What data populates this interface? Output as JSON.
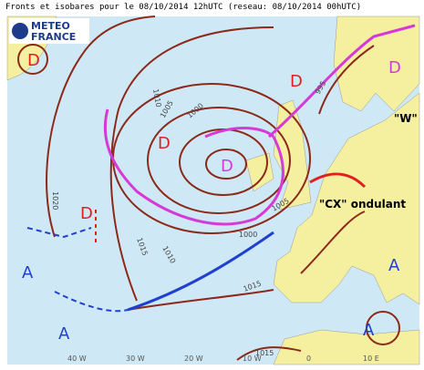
{
  "header": {
    "title": "Fronts et isobares pour le 08/10/2014 12hUTC (reseau: 08/10/2014 00hUTC)"
  },
  "logo": {
    "line1": "METEO",
    "line2": "FRANCE"
  },
  "pressure_centers": [
    {
      "label": "D"
    },
    {
      "label": "D"
    },
    {
      "label": "D"
    },
    {
      "label": "D"
    },
    {
      "label": "D"
    },
    {
      "label": "D"
    },
    {
      "label": "A"
    },
    {
      "label": "A"
    },
    {
      "label": "A"
    },
    {
      "label": "A"
    }
  ],
  "isobar_labels": [
    "1020",
    "1015",
    "1010",
    "1010",
    "1005",
    "1000",
    "995",
    "1005",
    "1000",
    "1015",
    "1015"
  ],
  "annotations": [
    "\"W\"",
    "\"CX\" ondulant"
  ],
  "longitude_labels": [
    "40 W",
    "30 W",
    "20 W",
    "10 W",
    "0",
    "10 E"
  ]
}
